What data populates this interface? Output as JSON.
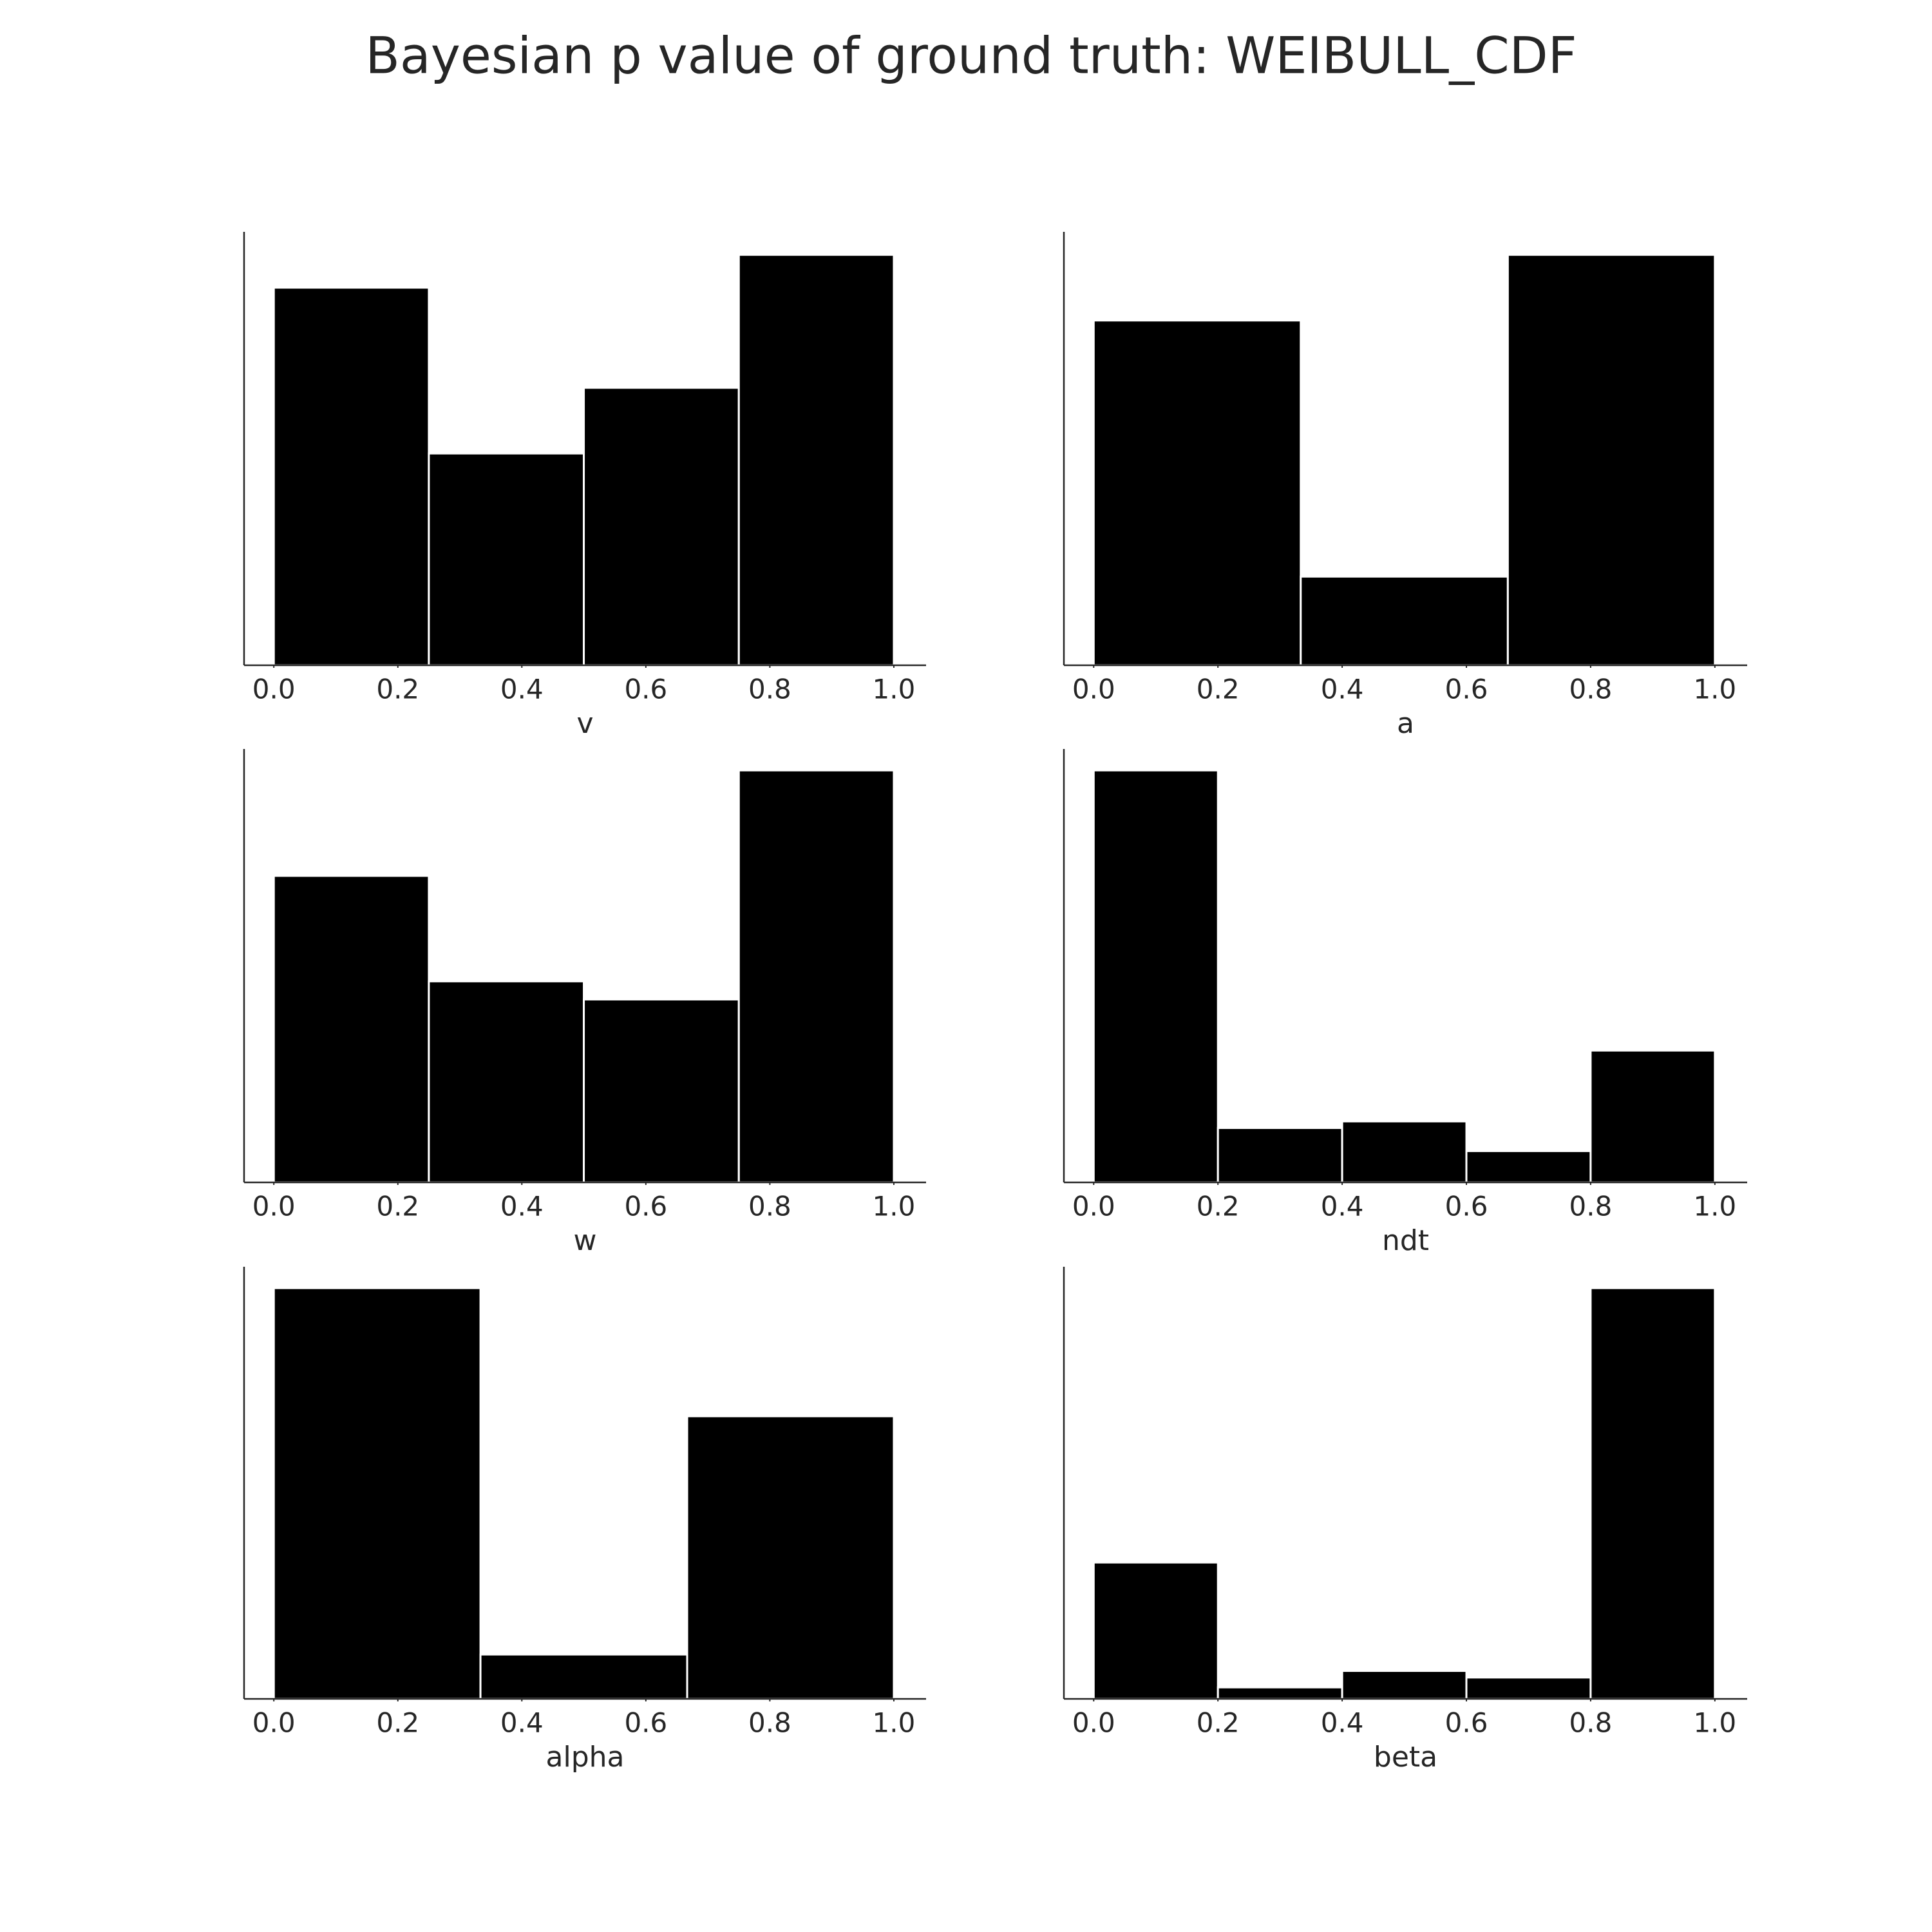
{
  "title": "Bayesian p value of ground truth: WEIBULL_CDF",
  "chart_data": [
    {
      "type": "histogram",
      "xlabel": "v",
      "bins": [
        0,
        0.25,
        0.5,
        0.75,
        1
      ],
      "values": [
        23,
        12.9,
        16.9,
        25
      ],
      "color": "#000000",
      "xlim": [
        -0.048,
        1.052
      ],
      "ylim": [
        0,
        26.4
      ],
      "xticks": [
        {
          "value": 0,
          "label": "0.0"
        },
        {
          "value": 0.2,
          "label": "0.2"
        },
        {
          "value": 0.4,
          "label": "0.4"
        },
        {
          "value": 0.6,
          "label": "0.6"
        },
        {
          "value": 0.8,
          "label": "0.8"
        },
        {
          "value": 1,
          "label": "1.0"
        }
      ]
    },
    {
      "type": "histogram",
      "xlabel": "a",
      "bins": [
        0,
        0.3333,
        0.6667,
        1
      ],
      "values": [
        21,
        5.4,
        25
      ],
      "color": "#000000",
      "xlim": [
        -0.048,
        1.052
      ],
      "ylim": [
        0,
        26.4
      ],
      "xticks": [
        {
          "value": 0,
          "label": "0.0"
        },
        {
          "value": 0.2,
          "label": "0.2"
        },
        {
          "value": 0.4,
          "label": "0.4"
        },
        {
          "value": 0.6,
          "label": "0.6"
        },
        {
          "value": 0.8,
          "label": "0.8"
        },
        {
          "value": 1,
          "label": "1.0"
        }
      ]
    },
    {
      "type": "histogram",
      "xlabel": "w",
      "bins": [
        0,
        0.25,
        0.5,
        0.75,
        1
      ],
      "values": [
        18.6,
        12.2,
        11.1,
        25
      ],
      "color": "#000000",
      "xlim": [
        -0.048,
        1.052
      ],
      "ylim": [
        0,
        26.3
      ],
      "xticks": [
        {
          "value": 0,
          "label": "0.0"
        },
        {
          "value": 0.2,
          "label": "0.2"
        },
        {
          "value": 0.4,
          "label": "0.4"
        },
        {
          "value": 0.6,
          "label": "0.6"
        },
        {
          "value": 0.8,
          "label": "0.8"
        },
        {
          "value": 1,
          "label": "1.0"
        }
      ]
    },
    {
      "type": "histogram",
      "xlabel": "ndt",
      "bins": [
        0,
        0.2,
        0.4,
        0.6,
        0.8,
        1
      ],
      "values": [
        25,
        3.3,
        3.7,
        1.9,
        8
      ],
      "color": "#000000",
      "xlim": [
        -0.048,
        1.052
      ],
      "ylim": [
        0,
        26.3
      ],
      "xticks": [
        {
          "value": 0,
          "label": "0.0"
        },
        {
          "value": 0.2,
          "label": "0.2"
        },
        {
          "value": 0.4,
          "label": "0.4"
        },
        {
          "value": 0.6,
          "label": "0.6"
        },
        {
          "value": 0.8,
          "label": "0.8"
        },
        {
          "value": 1,
          "label": "1.0"
        }
      ]
    },
    {
      "type": "histogram",
      "xlabel": "alpha",
      "bins": [
        0,
        0.3333,
        0.6667,
        1
      ],
      "values": [
        25,
        2.7,
        17.2
      ],
      "color": "#000000",
      "xlim": [
        -0.048,
        1.052
      ],
      "ylim": [
        0,
        26.3
      ],
      "xticks": [
        {
          "value": 0,
          "label": "0.0"
        },
        {
          "value": 0.2,
          "label": "0.2"
        },
        {
          "value": 0.4,
          "label": "0.4"
        },
        {
          "value": 0.6,
          "label": "0.6"
        },
        {
          "value": 0.8,
          "label": "0.8"
        },
        {
          "value": 1,
          "label": "1.0"
        }
      ]
    },
    {
      "type": "histogram",
      "xlabel": "beta",
      "bins": [
        0,
        0.2,
        0.4,
        0.6,
        0.8,
        1
      ],
      "values": [
        8.3,
        0.7,
        1.7,
        1.3,
        25
      ],
      "color": "#000000",
      "xlim": [
        -0.048,
        1.052
      ],
      "ylim": [
        0,
        26.3
      ],
      "xticks": [
        {
          "value": 0,
          "label": "0.0"
        },
        {
          "value": 0.2,
          "label": "0.2"
        },
        {
          "value": 0.4,
          "label": "0.4"
        },
        {
          "value": 0.6,
          "label": "0.6"
        },
        {
          "value": 0.8,
          "label": "0.8"
        },
        {
          "value": 1,
          "label": "1.0"
        }
      ]
    }
  ]
}
